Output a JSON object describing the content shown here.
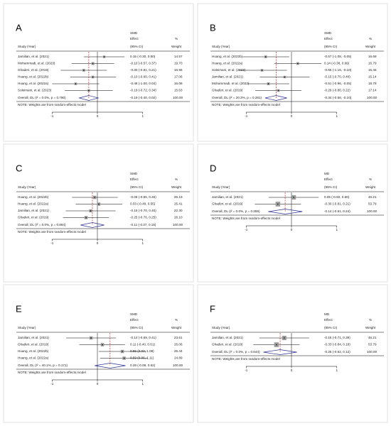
{
  "chart_data": [
    {
      "type": "forest",
      "panel": "A",
      "measure": "SMD",
      "effect_header": "Effect",
      "pct_header": "%",
      "study_header": "Study (Year)",
      "ci_header": "(95% CI)",
      "weight_header": "Weight",
      "categories": [
        "Jamilian, et al. (2021)",
        "Mohammadi, et al. (2023)",
        "Ghaderi, et al. (2019)",
        "Huang, et al. (2022b)",
        "Huang, et al. (2022a)",
        "Soleimani, et al. (2023)"
      ],
      "values": [
        0.15,
        -0.1,
        -0.3,
        -0.1,
        -0.48,
        -0.19
      ],
      "lower": [
        -0.3,
        -0.57,
        -0.81,
        -0.6,
        -1.0,
        -0.72
      ],
      "upper": [
        0.6,
        0.37,
        0.21,
        0.41,
        0.04,
        0.34
      ],
      "value_labels": [
        "0.15 (-0.30, 0.60)",
        "-0.10 (-0.57, 0.37)",
        "-0.30 (-0.81, 0.21)",
        "-0.10 (-0.60, 0.41)",
        "-0.48 (-1.00, 0.04)",
        "-0.19 (-0.72, 0.34)"
      ],
      "weights": [
        14.57,
        19.7,
        16.96,
        17.06,
        16.08,
        15.63
      ],
      "weight_labels": [
        "14.57",
        "19.70",
        "16.96",
        "17.06",
        "16.08",
        "15.63"
      ],
      "overall_label": "Overall, DL (I² = 0.0%, p = 0.790)",
      "overall_value": -0.19,
      "overall_lower": -0.4,
      "overall_upper": 0.02,
      "overall_value_label": "-0.19 (-0.40, 0.02)",
      "overall_weight": 100,
      "overall_weight_label": "100.00",
      "note": "NOTE: Weights are from random-effects model",
      "xlim": [
        -1.6,
        1.6
      ],
      "xticks": [
        -1,
        0,
        1
      ]
    },
    {
      "type": "forest",
      "panel": "B",
      "measure": "SMD",
      "effect_header": "Effect",
      "pct_header": "%",
      "study_header": "Study (Year)",
      "ci_header": "(95% CI)",
      "weight_header": "Weight",
      "categories": [
        "Huang, et al. (2022b)",
        "Huang, et al. (2022a)",
        "Soleimani, et al. (2023)",
        "Jamilian, et al. (2021)",
        "Mohammadi, et al. (2023)",
        "Ghaderi, et al. (2019)"
      ],
      "values": [
        -0.57,
        0.14,
        -0.65,
        -0.15,
        -0.51,
        -0.29
      ],
      "lower": [
        -1.08,
        -0.38,
        -1.16,
        -0.7,
        -0.96,
        -0.8
      ],
      "upper": [
        -0.05,
        0.66,
        -0.1,
        0.4,
        -0.05,
        0.22
      ],
      "value_labels": [
        "-0.57 (-1.08, -0.05)",
        "0.14 (-0.38, 0.66)",
        "-0.65 (-1.16, -0.10)",
        "-0.15 (-0.70, 0.40)",
        "-0.51 (-0.96, -0.05)",
        "-0.29 (-0.80, 0.22)"
      ],
      "weights": [
        16.69,
        16.79,
        15.46,
        15.14,
        18.79,
        17.14
      ],
      "weight_labels": [
        "16.69",
        "16.79",
        "15.46",
        "15.14",
        "18.79",
        "17.14"
      ],
      "overall_label": "Overall, DL (I² = 20.3%, p = 0.281)",
      "overall_value": -0.34,
      "overall_lower": -0.58,
      "overall_upper": -0.1,
      "overall_value_label": "-0.34 (-0.58, -0.10)",
      "overall_weight": 100,
      "overall_weight_label": "100.00",
      "note": "NOTE: Weights are from random-effects model",
      "xlim": [
        -1.6,
        1.6
      ],
      "xticks": [
        -1,
        0,
        1
      ]
    },
    {
      "type": "forest",
      "panel": "C",
      "measure": "SMD",
      "effect_header": "Effect",
      "pct_header": "%",
      "study_header": "Study (Year)",
      "ci_header": "(95% CI)",
      "weight_header": "Weight",
      "categories": [
        "Huang, et al. (2022b)",
        "Huang, et al. (2022a)",
        "Jamilian, et al. (2021)",
        "Ghaderi, et al. (2019)"
      ],
      "values": [
        -0.06,
        0.03,
        -0.15,
        -0.25
      ],
      "lower": [
        -0.56,
        -0.48,
        -0.7,
        -0.76
      ],
      "upper": [
        0.45,
        0.55,
        0.4,
        0.25
      ],
      "value_labels": [
        "-0.06 (-0.56, 0.45)",
        "0.03 (-0.48, 0.55)",
        "-0.15 (-0.70, 0.40)",
        "-0.25 (-0.76, 0.25)"
      ],
      "weights": [
        26.19,
        25.41,
        22.3,
        26.1
      ],
      "weight_labels": [
        "26.19",
        "25.41",
        "22.30",
        "26.10"
      ],
      "overall_label": "Overall, DL (I² = 0.0%, p = 0.864)",
      "overall_value": -0.11,
      "overall_lower": -0.37,
      "overall_upper": 0.15,
      "overall_value_label": "-0.11 (-0.37, 0.15)",
      "overall_weight": 100,
      "overall_weight_label": "100.00",
      "note": "NOTE: Weights are from random-effects model",
      "xlim": [
        -1.6,
        1.6
      ],
      "xticks": [
        -1,
        0,
        1
      ]
    },
    {
      "type": "forest",
      "panel": "D",
      "measure": "MD",
      "effect_header": "Effect",
      "pct_header": "%",
      "study_header": "Study (Year)",
      "ci_header": "(95% CI)",
      "weight_header": "Weight",
      "categories": [
        "Jamilian, et al. (2021)",
        "Ghaderi, et al. (2019)"
      ],
      "values": [
        0.05,
        -0.3
      ],
      "lower": [
        -0.5,
        -0.81
      ],
      "upper": [
        0.6,
        0.21
      ],
      "value_labels": [
        "0.05 (-0.50, 0.60)",
        "-0.30 (-0.81, 0.21)"
      ],
      "weights": [
        46.21,
        53.79
      ],
      "weight_labels": [
        "46.21",
        "53.79"
      ],
      "overall_label": "Overall, DL (I² = 0.0%, p = 0.359)",
      "overall_value": -0.14,
      "overall_lower": -0.51,
      "overall_upper": 0.24,
      "overall_value_label": "-0.14 (-0.51, 0.24)",
      "overall_weight": 100,
      "overall_weight_label": "100.00",
      "note": "NOTE: Weights are from random-effects model",
      "xlim": [
        -1.6,
        1.6
      ],
      "xticks": [
        -1,
        0,
        1
      ]
    },
    {
      "type": "forest",
      "panel": "E",
      "measure": "SMD",
      "effect_header": "Effect",
      "pct_header": "%",
      "study_header": "Study (Year)",
      "ci_header": "(95% CI)",
      "weight_header": "Weight",
      "categories": [
        "Jamilian, et al. (2021)",
        "Ghaderi, et al. (2019)",
        "Huang, et al. (2022b)",
        "Huang, et al. (2022a)"
      ],
      "values": [
        -0.14,
        0.11,
        0.55,
        0.59
      ],
      "lower": [
        -0.69,
        -0.4,
        0.03,
        0.06
      ],
      "upper": [
        0.41,
        0.61,
        1.08,
        1.11
      ],
      "value_labels": [
        "-0.14 (-0.69, 0.41)",
        "0.11 (-0.40, 0.61)",
        "0.55 (0.03, 1.08)",
        "0.59 (0.06, 1.11)"
      ],
      "weights": [
        23.61,
        26.06,
        25.44,
        24.89
      ],
      "weight_labels": [
        "23.61",
        "26.06",
        "25.44",
        "24.89"
      ],
      "overall_label": "Overall, DL (I² = 40.1%, p = 0.171)",
      "overall_value": 0.28,
      "overall_lower": -0.06,
      "overall_upper": 0.62,
      "overall_value_label": "0.28 (-0.06, 0.62)",
      "overall_weight": 100,
      "overall_weight_label": "100.00",
      "note": "NOTE: Weights are from random-effects model",
      "xlim": [
        -1.6,
        1.6
      ],
      "xticks": [
        -1,
        0,
        1
      ]
    },
    {
      "type": "forest",
      "panel": "F",
      "measure": "MD",
      "effect_header": "Effect",
      "pct_header": "%",
      "study_header": "Study (Year)",
      "ci_header": "(95% CI)",
      "weight_header": "Weight",
      "categories": [
        "Jamilian, et al. (2021)",
        "Ghaderi, et al. (2019)"
      ],
      "values": [
        -0.16,
        -0.33
      ],
      "lower": [
        -0.71,
        -0.84
      ],
      "upper": [
        0.39,
        0.18
      ],
      "value_labels": [
        "-0.16 (-0.71, 0.39)",
        "-0.33 (-0.84, 0.18)"
      ],
      "weights": [
        46.21,
        53.79
      ],
      "weight_labels": [
        "46.21",
        "53.79"
      ],
      "overall_label": "Overall, DL (I² = 0.0%, p = 0.644)",
      "overall_value": -0.25,
      "overall_lower": -0.62,
      "overall_upper": 0.12,
      "overall_value_label": "-0.25 (-0.62, 0.12)",
      "overall_weight": 100,
      "overall_weight_label": "100.00",
      "note": "NOTE: Weights are from random-effects model",
      "xlim": [
        -1.6,
        1.6
      ],
      "xticks": [
        -1,
        0,
        1
      ]
    }
  ]
}
